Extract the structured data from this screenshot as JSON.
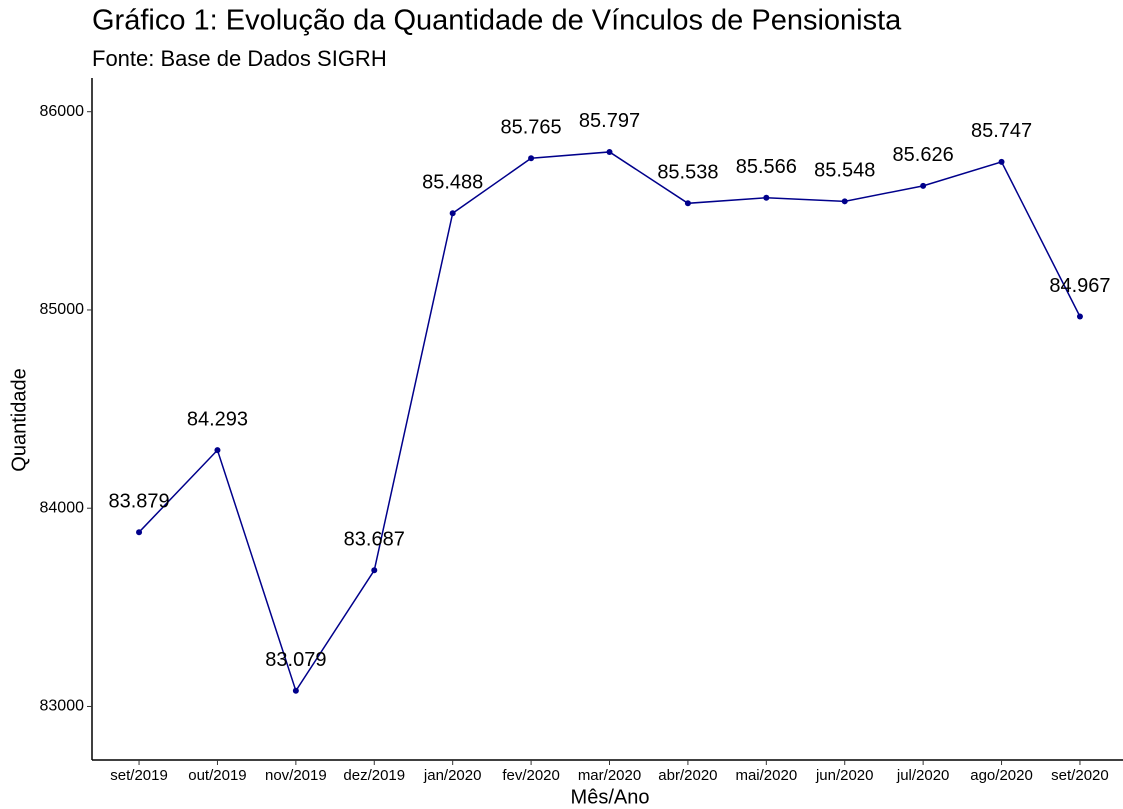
{
  "chart_data": {
    "type": "line",
    "title": "Gráfico 1: Evolução da Quantidade de Vínculos de Pensionista",
    "subtitle": "Fonte: Base de Dados SIGRH",
    "x_label": "Mês/Ano",
    "y_label": "Quantidade",
    "categories": [
      "set/2019",
      "out/2019",
      "nov/2019",
      "dez/2019",
      "jan/2020",
      "fev/2020",
      "mar/2020",
      "abr/2020",
      "mai/2020",
      "jun/2020",
      "jul/2020",
      "ago/2020",
      "set/2020"
    ],
    "series": [
      {
        "name": "Quantidade",
        "color": "#00008b",
        "values": [
          83879,
          84293,
          83079,
          83687,
          85488,
          85765,
          85797,
          85538,
          85566,
          85548,
          85626,
          85747,
          84967
        ],
        "value_labels": [
          "83.879",
          "84.293",
          "83.079",
          "83.687",
          "85.488",
          "85.765",
          "85.797",
          "85.538",
          "85.566",
          "85.548",
          "85.626",
          "85.747",
          "84.967"
        ]
      }
    ],
    "ylim": [
      82730,
      86170
    ],
    "yticks": [
      83000,
      84000,
      85000,
      86000
    ],
    "grid": false
  }
}
